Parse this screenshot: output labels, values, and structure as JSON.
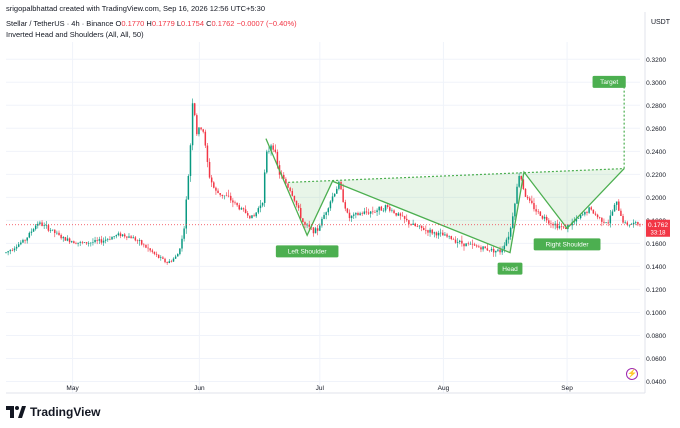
{
  "header": {
    "author_line": "srigopalbhattad created with TradingView.com, Sep 16, 2026 12:56 UTC+5:30",
    "symbol": "Stellar / TetherUS · 4h · Binance",
    "open_label": "O",
    "open": "0.1770",
    "high_label": "H",
    "high": "0.1779",
    "low_label": "L",
    "low": "0.1754",
    "close_label": "C",
    "close": "0.1762",
    "change": "−0.0007 (−0.40%)",
    "indicator": "Inverted Head and Shoulders (All, All, 50)"
  },
  "quote_currency": "USDT",
  "price_tag": {
    "price": "0.1762",
    "countdown": "33:18",
    "color": "#f23645"
  },
  "footer": {
    "brand": "TradingView"
  },
  "colors": {
    "up": "#089981",
    "down": "#f23645",
    "pattern": "#4caf50",
    "fill": "rgba(76,175,80,0.13)"
  },
  "chart_data": {
    "type": "candlestick",
    "timeframe": "4h",
    "x_tick_labels": [
      "May",
      "Jun",
      "Jul",
      "Aug",
      "Sep"
    ],
    "y_tick_labels": [
      "0.3200",
      "0.3000",
      "0.2800",
      "0.2600",
      "0.2400",
      "0.2200",
      "0.2000",
      "0.1800",
      "0.1600",
      "0.1400",
      "0.1200",
      "0.1000",
      "0.0800",
      "0.0600",
      "0.0400"
    ],
    "y_range": [
      0.03,
      0.335
    ],
    "grid": true,
    "close_path": [
      [
        0.0,
        0.152
      ],
      [
        0.03,
        0.163
      ],
      [
        0.05,
        0.178
      ],
      [
        0.07,
        0.172
      ],
      [
        0.09,
        0.164
      ],
      [
        0.12,
        0.16
      ],
      [
        0.15,
        0.162
      ],
      [
        0.18,
        0.168
      ],
      [
        0.2,
        0.165
      ],
      [
        0.22,
        0.157
      ],
      [
        0.24,
        0.148
      ],
      [
        0.255,
        0.143
      ],
      [
        0.27,
        0.149
      ],
      [
        0.28,
        0.168
      ],
      [
        0.29,
        0.235
      ],
      [
        0.295,
        0.292
      ],
      [
        0.3,
        0.255
      ],
      [
        0.31,
        0.262
      ],
      [
        0.32,
        0.22
      ],
      [
        0.33,
        0.205
      ],
      [
        0.35,
        0.2
      ],
      [
        0.37,
        0.19
      ],
      [
        0.39,
        0.182
      ],
      [
        0.405,
        0.198
      ],
      [
        0.41,
        0.235
      ],
      [
        0.42,
        0.249
      ],
      [
        0.43,
        0.222
      ],
      [
        0.45,
        0.205
      ],
      [
        0.47,
        0.176
      ],
      [
        0.49,
        0.17
      ],
      [
        0.51,
        0.195
      ],
      [
        0.525,
        0.212
      ],
      [
        0.54,
        0.182
      ],
      [
        0.56,
        0.186
      ],
      [
        0.58,
        0.188
      ],
      [
        0.6,
        0.192
      ],
      [
        0.62,
        0.184
      ],
      [
        0.64,
        0.176
      ],
      [
        0.67,
        0.17
      ],
      [
        0.7,
        0.165
      ],
      [
        0.72,
        0.16
      ],
      [
        0.76,
        0.155
      ],
      [
        0.78,
        0.153
      ],
      [
        0.795,
        0.17
      ],
      [
        0.81,
        0.222
      ],
      [
        0.82,
        0.2
      ],
      [
        0.84,
        0.186
      ],
      [
        0.86,
        0.178
      ],
      [
        0.88,
        0.173
      ],
      [
        0.9,
        0.18
      ],
      [
        0.92,
        0.19
      ],
      [
        0.935,
        0.182
      ],
      [
        0.95,
        0.178
      ],
      [
        0.962,
        0.196
      ],
      [
        0.975,
        0.177
      ]
    ],
    "pattern": {
      "name": "Inverted Head and Shoulders",
      "points": [
        {
          "label": "",
          "x": 0.41,
          "price": 0.251
        },
        {
          "label": "Left Shoulder",
          "x": 0.475,
          "price": 0.167
        },
        {
          "label": "",
          "x": 0.515,
          "price": 0.214
        },
        {
          "label": "Head",
          "x": 0.795,
          "price": 0.152
        },
        {
          "label": "",
          "x": 0.817,
          "price": 0.222
        },
        {
          "label": "Right Shoulder",
          "x": 0.885,
          "price": 0.173
        },
        {
          "label": "",
          "x": 0.975,
          "price": 0.225
        }
      ],
      "neckline": [
        {
          "x": 0.445,
          "price": 0.213
        },
        {
          "x": 0.975,
          "price": 0.225
        }
      ],
      "target": {
        "label": "Target",
        "x": 0.975,
        "price": 0.296
      }
    },
    "last_price": 0.1762
  }
}
